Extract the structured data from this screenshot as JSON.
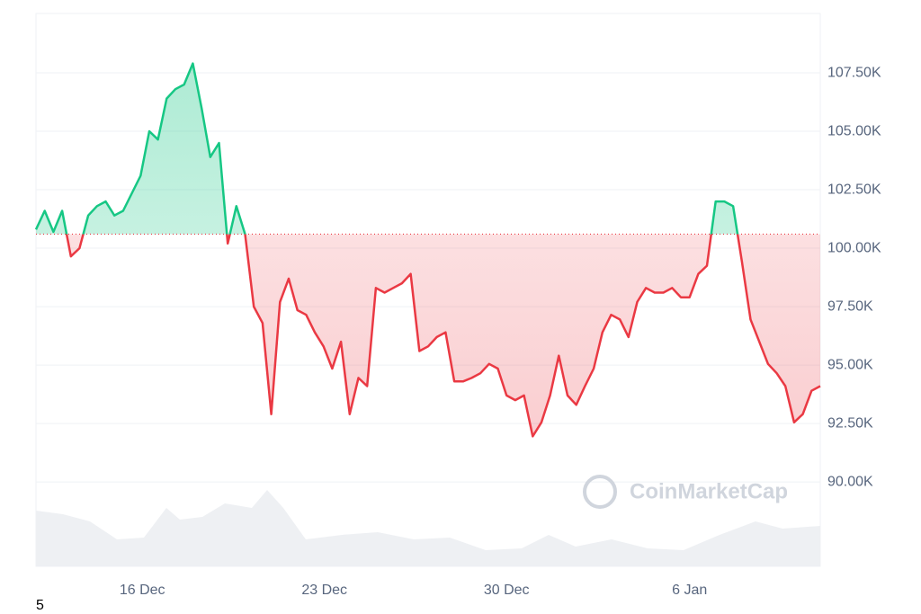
{
  "chart_data": {
    "type": "line",
    "watermark": "CoinMarketCap",
    "baseline": 100600,
    "colors": {
      "up": "#16c784",
      "down": "#ea3943"
    },
    "xlim": [
      0,
      90
    ],
    "xticks": [
      {
        "value": 12.2,
        "label": "16 Dec"
      },
      {
        "value": 33.1,
        "label": "23 Dec"
      },
      {
        "value": 54.0,
        "label": "30 Dec"
      },
      {
        "value": 75.0,
        "label": "6 Jan"
      }
    ],
    "ylim": [
      89080,
      110040
    ],
    "yticks": [
      {
        "value": 90000,
        "label": "90.00K"
      },
      {
        "value": 92500,
        "label": "92.50K"
      },
      {
        "value": 95000,
        "label": "95.00K"
      },
      {
        "value": 97500,
        "label": "97.50K"
      },
      {
        "value": 100000,
        "label": "100.00K"
      },
      {
        "value": 102500,
        "label": "102.50K"
      },
      {
        "value": 105000,
        "label": "105.00K"
      },
      {
        "value": 107500,
        "label": "107.50K"
      }
    ],
    "grid": true,
    "values": [
      100800,
      101600,
      100700,
      101600,
      99650,
      100000,
      101400,
      101800,
      102000,
      101400,
      101600,
      102350,
      103100,
      105000,
      104650,
      106400,
      106800,
      107000,
      107900,
      106000,
      103900,
      104500,
      100200,
      101800,
      100600,
      97500,
      96800,
      92900,
      97700,
      98700,
      97350,
      97150,
      96400,
      95800,
      94850,
      96000,
      92900,
      94450,
      94100,
      98300,
      98100,
      98300,
      98500,
      98900,
      95600,
      95800,
      96200,
      96400,
      94300,
      94300,
      94450,
      94650,
      95050,
      94850,
      93700,
      93500,
      93700,
      91950,
      92550,
      93700,
      95400,
      93700,
      93300,
      94100,
      94850,
      96400,
      97150,
      96950,
      96200,
      97700,
      98300,
      98100,
      98100,
      98300,
      97900,
      97900,
      98900,
      99250,
      102000,
      102000,
      101800,
      99450,
      96950,
      96000,
      95050,
      94650,
      94100,
      92550,
      92900,
      93900,
      94100
    ]
  },
  "footer_text": "5"
}
